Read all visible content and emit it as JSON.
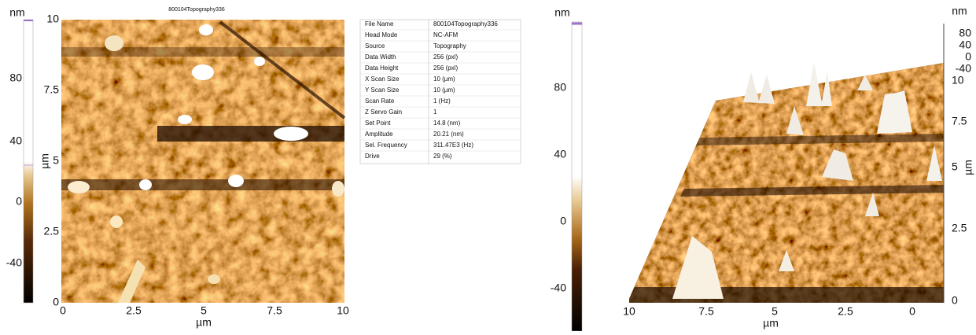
{
  "left_image": {
    "title": "800104Topography336",
    "colorbar_unit": "nm",
    "colorbar_ticks": [
      "80",
      "40",
      "0",
      "-40"
    ],
    "y_label": "µm",
    "y_ticks": [
      "10",
      "7.5",
      "5",
      "2.5",
      "0"
    ],
    "x_label": "µm",
    "x_ticks": [
      "0",
      "2.5",
      "5",
      "7.5",
      "10"
    ]
  },
  "info_table": {
    "rows": [
      [
        "File Name",
        "800104Topography336"
      ],
      [
        "Head Mode",
        "NC-AFM"
      ],
      [
        "Source",
        "Topography"
      ],
      [
        "Data Width",
        "256 (pxl)"
      ],
      [
        "Data Height",
        "256 (pxl)"
      ],
      [
        "X Scan Size",
        "10 (µm)"
      ],
      [
        "Y Scan Size",
        "10 (µm)"
      ],
      [
        "Scan Rate",
        "1 (Hz)"
      ],
      [
        "Z Servo Gain",
        "1"
      ],
      [
        "Set Point",
        "14.8 (nm)"
      ],
      [
        "Amplitude",
        "20.21 (nm)"
      ],
      [
        "Sel. Frequency",
        "311.47E3 (Hz)"
      ],
      [
        "Drive",
        "29 (%)"
      ]
    ]
  },
  "right_image": {
    "colorbar_unit": "nm",
    "colorbar_ticks": [
      "80",
      "40",
      "0",
      "-40"
    ],
    "z_unit": "nm",
    "z_ticks": [
      "80",
      "40",
      "0",
      "-40"
    ],
    "y_label": "µm",
    "y_ticks": [
      "10",
      "7.5",
      "5",
      "2.5",
      "0"
    ],
    "x_label": "µm",
    "x_ticks": [
      "10",
      "7.5",
      "5",
      "2.5",
      "0"
    ]
  }
}
